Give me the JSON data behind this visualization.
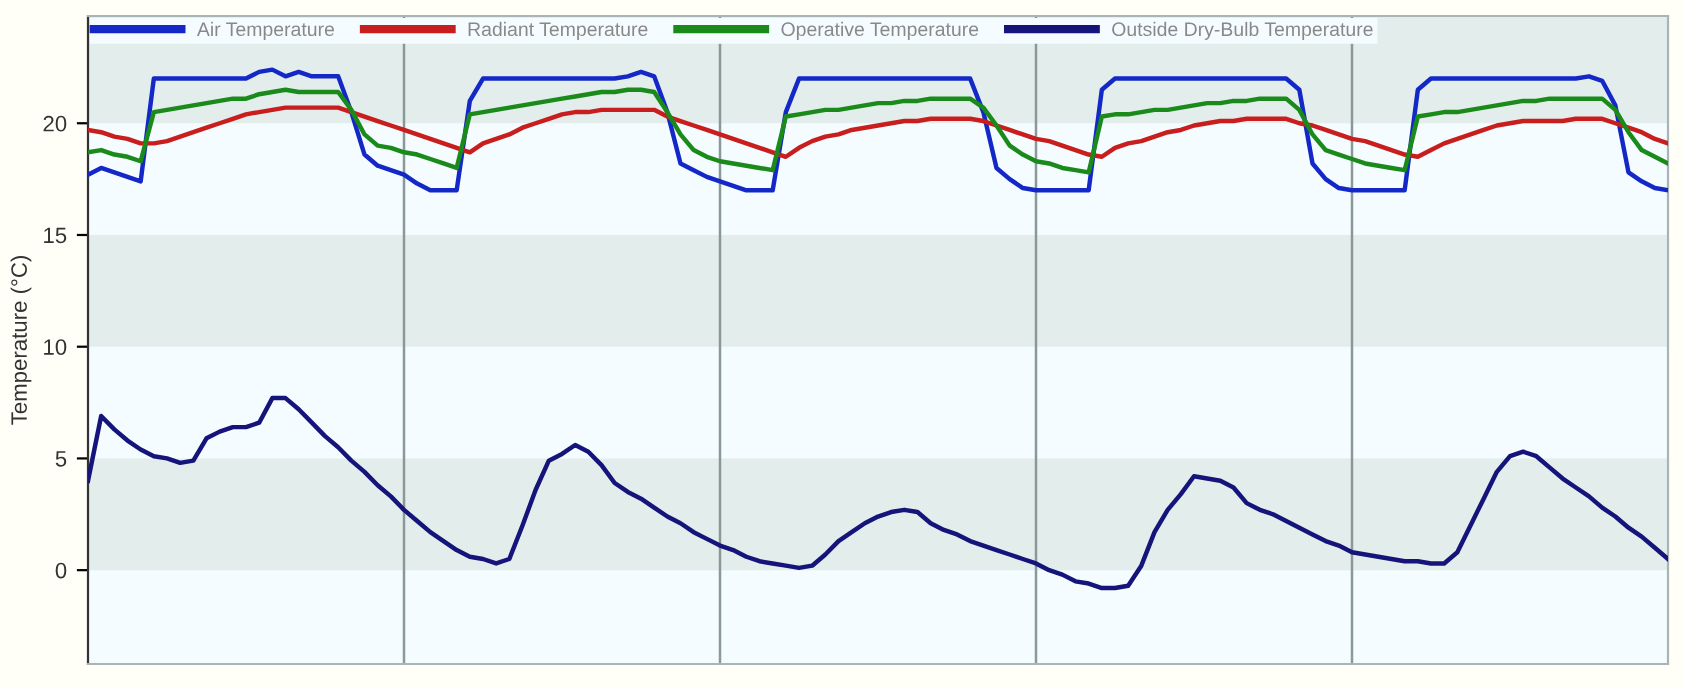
{
  "chart_data": {
    "type": "line",
    "ylabel": "Temperature (°C)",
    "ylim": [
      -4.2,
      24.8
    ],
    "categories": [
      null,
      null,
      null,
      null,
      null,
      null,
      null,
      null,
      null,
      null,
      null,
      null,
      null,
      null,
      null,
      null,
      null,
      null,
      null,
      null,
      null,
      null,
      null,
      null,
      null,
      null,
      null,
      null,
      null,
      null,
      null,
      null,
      null,
      null,
      null,
      null,
      null,
      null,
      null,
      null,
      null,
      null,
      null,
      null,
      null,
      null,
      null,
      null,
      null,
      null,
      null,
      null,
      null,
      null,
      null,
      null,
      null,
      null,
      null,
      null,
      null,
      null,
      null,
      null,
      null,
      null,
      null,
      null,
      null,
      null,
      null,
      null,
      null,
      null,
      null,
      null,
      null,
      null,
      null,
      null,
      null,
      null,
      null,
      null,
      null,
      null,
      null,
      null,
      null,
      null,
      null,
      null,
      null,
      null,
      null,
      null,
      null,
      null,
      null,
      null,
      null,
      null,
      null,
      null,
      null,
      null,
      null,
      null,
      null,
      null,
      null,
      null,
      null,
      null,
      null,
      null,
      null,
      null,
      null,
      null,
      null
    ],
    "yticks": [
      0,
      5,
      10,
      15,
      20
    ],
    "tick_labels": "y",
    "grid": "x",
    "legend": "top",
    "line_style": "solid",
    "marker": "none",
    "bands": [
      {
        "axis": "y",
        "from": 0,
        "to": 5,
        "color": "#e3eeec"
      },
      {
        "axis": "y",
        "from": 10,
        "to": 15,
        "color": "#e3eeec"
      },
      {
        "axis": "y",
        "from": 20,
        "to": 24.8,
        "color": "#e3eeec"
      }
    ],
    "series": [
      {
        "name": "Air Temperature",
        "color": "#1428c8",
        "values": [
          17.7,
          18.0,
          17.8,
          17.6,
          17.4,
          22.0,
          22.0,
          22.0,
          22.0,
          22.0,
          22.0,
          22.0,
          22.0,
          22.3,
          22.4,
          22.1,
          22.3,
          22.1,
          22.1,
          22.1,
          20.5,
          18.6,
          18.1,
          17.9,
          17.7,
          17.3,
          17.0,
          17.0,
          17.0,
          21.0,
          22.0,
          22.0,
          22.0,
          22.0,
          22.0,
          22.0,
          22.0,
          22.0,
          22.0,
          22.0,
          22.0,
          22.1,
          22.3,
          22.1,
          20.5,
          18.2,
          17.9,
          17.6,
          17.4,
          17.2,
          17.0,
          17.0,
          17.0,
          20.5,
          22.0,
          22.0,
          22.0,
          22.0,
          22.0,
          22.0,
          22.0,
          22.0,
          22.0,
          22.0,
          22.0,
          22.0,
          22.0,
          22.0,
          20.5,
          18.0,
          17.5,
          17.1,
          17.0,
          17.0,
          17.0,
          17.0,
          17.0,
          21.5,
          22.0,
          22.0,
          22.0,
          22.0,
          22.0,
          22.0,
          22.0,
          22.0,
          22.0,
          22.0,
          22.0,
          22.0,
          22.0,
          22.0,
          21.5,
          18.2,
          17.5,
          17.1,
          17.0,
          17.0,
          17.0,
          17.0,
          17.0,
          21.5,
          22.0,
          22.0,
          22.0,
          22.0,
          22.0,
          22.0,
          22.0,
          22.0,
          22.0,
          22.0,
          22.0,
          22.0,
          22.1,
          21.9,
          20.8,
          17.8,
          17.4,
          17.1,
          17.0
        ]
      },
      {
        "name": "Radiant Temperature",
        "color": "#c81e1e",
        "values": [
          19.7,
          19.6,
          19.4,
          19.3,
          19.1,
          19.1,
          19.2,
          19.4,
          19.6,
          19.8,
          20.0,
          20.2,
          20.4,
          20.5,
          20.6,
          20.7,
          20.7,
          20.7,
          20.7,
          20.7,
          20.5,
          20.3,
          20.1,
          19.9,
          19.7,
          19.5,
          19.3,
          19.1,
          18.9,
          18.7,
          19.1,
          19.3,
          19.5,
          19.8,
          20.0,
          20.2,
          20.4,
          20.5,
          20.5,
          20.6,
          20.6,
          20.6,
          20.6,
          20.6,
          20.3,
          20.1,
          19.9,
          19.7,
          19.5,
          19.3,
          19.1,
          18.9,
          18.7,
          18.5,
          18.9,
          19.2,
          19.4,
          19.5,
          19.7,
          19.8,
          19.9,
          20.0,
          20.1,
          20.1,
          20.2,
          20.2,
          20.2,
          20.2,
          20.1,
          19.9,
          19.7,
          19.5,
          19.3,
          19.2,
          19.0,
          18.8,
          18.6,
          18.5,
          18.9,
          19.1,
          19.2,
          19.4,
          19.6,
          19.7,
          19.9,
          20.0,
          20.1,
          20.1,
          20.2,
          20.2,
          20.2,
          20.2,
          20.0,
          19.9,
          19.7,
          19.5,
          19.3,
          19.2,
          19.0,
          18.8,
          18.6,
          18.5,
          18.8,
          19.1,
          19.3,
          19.5,
          19.7,
          19.9,
          20.0,
          20.1,
          20.1,
          20.1,
          20.1,
          20.2,
          20.2,
          20.2,
          20.0,
          19.8,
          19.6,
          19.3,
          19.1
        ]
      },
      {
        "name": "Operative Temperature",
        "color": "#1a8a1a",
        "values": [
          18.7,
          18.8,
          18.6,
          18.5,
          18.3,
          20.5,
          20.6,
          20.7,
          20.8,
          20.9,
          21.0,
          21.1,
          21.1,
          21.3,
          21.4,
          21.5,
          21.4,
          21.4,
          21.4,
          21.4,
          20.6,
          19.5,
          19.0,
          18.9,
          18.7,
          18.6,
          18.4,
          18.2,
          18.0,
          20.4,
          20.5,
          20.6,
          20.7,
          20.8,
          20.9,
          21.0,
          21.1,
          21.2,
          21.3,
          21.4,
          21.4,
          21.5,
          21.5,
          21.4,
          20.5,
          19.5,
          18.8,
          18.5,
          18.3,
          18.2,
          18.1,
          18.0,
          17.9,
          20.3,
          20.4,
          20.5,
          20.6,
          20.6,
          20.7,
          20.8,
          20.9,
          20.9,
          21.0,
          21.0,
          21.1,
          21.1,
          21.1,
          21.1,
          20.7,
          19.9,
          19.0,
          18.6,
          18.3,
          18.2,
          18.0,
          17.9,
          17.8,
          20.3,
          20.4,
          20.4,
          20.5,
          20.6,
          20.6,
          20.7,
          20.8,
          20.9,
          20.9,
          21.0,
          21.0,
          21.1,
          21.1,
          21.1,
          20.6,
          19.5,
          18.8,
          18.6,
          18.4,
          18.2,
          18.1,
          18.0,
          17.9,
          20.3,
          20.4,
          20.5,
          20.5,
          20.6,
          20.7,
          20.8,
          20.9,
          21.0,
          21.0,
          21.1,
          21.1,
          21.1,
          21.1,
          21.1,
          20.6,
          19.6,
          18.8,
          18.5,
          18.2
        ]
      },
      {
        "name": "Outside Dry-Bulb Temperature",
        "color": "#14147a",
        "values": [
          4.0,
          6.9,
          6.3,
          5.8,
          5.4,
          5.1,
          5.0,
          4.8,
          4.9,
          5.9,
          6.2,
          6.4,
          6.4,
          6.6,
          7.7,
          7.7,
          7.2,
          6.6,
          6.0,
          5.5,
          4.9,
          4.4,
          3.8,
          3.3,
          2.7,
          2.2,
          1.7,
          1.3,
          0.9,
          0.6,
          0.5,
          0.3,
          0.5,
          2.0,
          3.6,
          4.9,
          5.2,
          5.6,
          5.3,
          4.7,
          3.9,
          3.5,
          3.2,
          2.8,
          2.4,
          2.1,
          1.7,
          1.4,
          1.1,
          0.9,
          0.6,
          0.4,
          0.3,
          0.2,
          0.1,
          0.2,
          0.7,
          1.3,
          1.7,
          2.1,
          2.4,
          2.6,
          2.7,
          2.6,
          2.1,
          1.8,
          1.6,
          1.3,
          1.1,
          0.9,
          0.7,
          0.5,
          0.3,
          0.0,
          -0.2,
          -0.5,
          -0.6,
          -0.8,
          -0.8,
          -0.7,
          0.2,
          1.7,
          2.7,
          3.4,
          4.2,
          4.1,
          4.0,
          3.7,
          3.0,
          2.7,
          2.5,
          2.2,
          1.9,
          1.6,
          1.3,
          1.1,
          0.8,
          0.7,
          0.6,
          0.5,
          0.4,
          0.4,
          0.3,
          0.3,
          0.8,
          2.0,
          3.2,
          4.4,
          5.1,
          5.3,
          5.1,
          4.6,
          4.1,
          3.7,
          3.3,
          2.8,
          2.4,
          1.9,
          1.5,
          1.0,
          0.5
        ]
      }
    ]
  }
}
